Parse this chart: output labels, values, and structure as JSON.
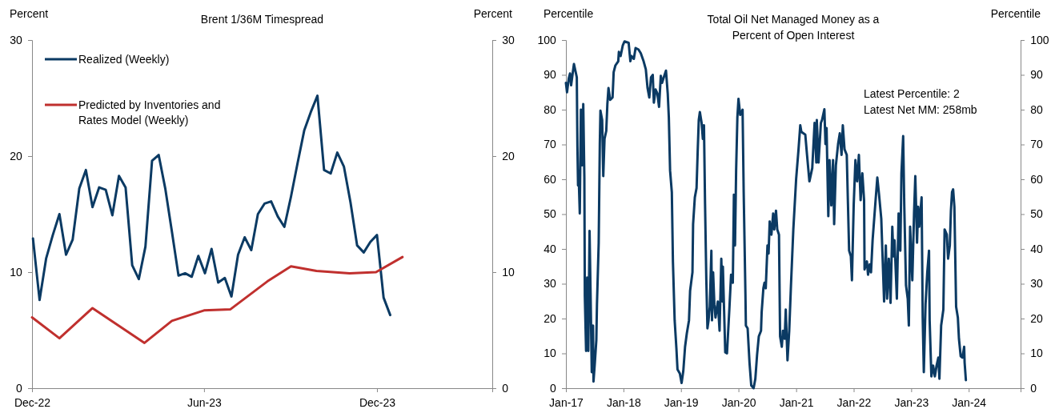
{
  "chart_data": [
    {
      "type": "line",
      "title": "Brent 1/36M Timespread",
      "ylabel": "Percent",
      "y2label": "Percent",
      "legend": "top left",
      "xlim": [
        "2022-12-01",
        "2024-04-01"
      ],
      "xticks": [
        {
          "value": "2022-12-01",
          "label": "Dec-22"
        },
        {
          "value": "2023-06-01",
          "label": "Jun-23"
        },
        {
          "value": "2023-12-01",
          "label": "Dec-23"
        }
      ],
      "ylim": [
        0,
        30
      ],
      "yticks": [
        0,
        10,
        20,
        30
      ],
      "y2lim": [
        0,
        30
      ],
      "y2ticks": [
        0,
        10,
        20,
        30
      ],
      "series": [
        {
          "name": "Realized (Weekly)",
          "color": "#0b3a63",
          "x": [
            "2022-12-02",
            "2022-12-09",
            "2022-12-16",
            "2022-12-23",
            "2022-12-30",
            "2023-01-06",
            "2023-01-13",
            "2023-01-20",
            "2023-01-27",
            "2023-02-03",
            "2023-02-10",
            "2023-02-17",
            "2023-02-24",
            "2023-03-03",
            "2023-03-10",
            "2023-03-17",
            "2023-03-24",
            "2023-03-31",
            "2023-04-07",
            "2023-04-14",
            "2023-04-21",
            "2023-04-28",
            "2023-05-05",
            "2023-05-12",
            "2023-05-19",
            "2023-05-26",
            "2023-06-02",
            "2023-06-09",
            "2023-06-16",
            "2023-06-23",
            "2023-06-30",
            "2023-07-07",
            "2023-07-14",
            "2023-07-21",
            "2023-07-28",
            "2023-08-04",
            "2023-08-11",
            "2023-08-18",
            "2023-08-25",
            "2023-09-01",
            "2023-09-08",
            "2023-09-15",
            "2023-09-22",
            "2023-09-29",
            "2023-10-06",
            "2023-10-13",
            "2023-10-20",
            "2023-10-27",
            "2023-11-03",
            "2023-11-10",
            "2023-11-17",
            "2023-11-24",
            "2023-12-01",
            "2023-12-08",
            "2023-12-15"
          ],
          "values": [
            12.9,
            7.6,
            11.2,
            13.2,
            15.0,
            11.5,
            12.8,
            17.2,
            18.8,
            15.6,
            17.3,
            17.1,
            14.9,
            18.3,
            17.3,
            10.6,
            9.4,
            12.2,
            19.6,
            20.1,
            17.2,
            13.5,
            9.7,
            9.9,
            9.6,
            11.4,
            9.9,
            12.0,
            9.1,
            9.5,
            7.9,
            11.5,
            13.0,
            11.9,
            15.0,
            15.9,
            16.1,
            14.8,
            13.9,
            16.5,
            19.4,
            22.2,
            23.8,
            25.2,
            18.8,
            18.5,
            20.3,
            19.1,
            16.0,
            12.3,
            11.7,
            12.6,
            13.2,
            7.8,
            6.3
          ]
        },
        {
          "name": "Predicted by Inventories and Rates Model (Weekly)",
          "color": "#c0302e",
          "x": [
            "2022-12-01",
            "2022-12-30",
            "2023-02-03",
            "2023-03-30",
            "2023-04-28",
            "2023-06-01",
            "2023-06-29",
            "2023-08-07",
            "2023-09-01",
            "2023-09-28",
            "2023-11-02",
            "2023-11-30",
            "2023-12-28"
          ],
          "values": [
            6.1,
            4.3,
            6.9,
            3.9,
            5.8,
            6.7,
            6.8,
            9.2,
            10.5,
            10.1,
            9.9,
            10.0,
            11.3
          ]
        }
      ]
    },
    {
      "type": "line",
      "title": "Total Oil Net Managed Money as a Percent of Open Interest",
      "ylabel": "Percentile",
      "y2label": "Percentile",
      "annotations": [
        "Latest Percentile: 2",
        "Latest Net MM: 258mb"
      ],
      "xlim": [
        "2017-01-01",
        "2024-11-25"
      ],
      "xticks": [
        {
          "value": "2017-01-01",
          "label": "Jan-17"
        },
        {
          "value": "2018-01-01",
          "label": "Jan-18"
        },
        {
          "value": "2019-01-01",
          "label": "Jan-19"
        },
        {
          "value": "2020-01-01",
          "label": "Jan-20"
        },
        {
          "value": "2021-01-01",
          "label": "Jan-21"
        },
        {
          "value": "2022-01-01",
          "label": "Jan-22"
        },
        {
          "value": "2023-01-01",
          "label": "Jan-23"
        },
        {
          "value": "2024-01-01",
          "label": "Jan-24"
        }
      ],
      "ylim": [
        0,
        100
      ],
      "yticks": [
        0,
        10,
        20,
        30,
        40,
        50,
        60,
        70,
        80,
        90,
        100
      ],
      "y2lim": [
        0,
        100
      ],
      "y2ticks": [
        0,
        10,
        20,
        30,
        40,
        50,
        60,
        70,
        80,
        90,
        100
      ],
      "series": [
        {
          "color": "#0b3a63",
          "x": [
            "2017-01-01",
            "2017-01-08",
            "2017-01-19",
            "2017-01-27",
            "2017-02-03",
            "2017-02-14",
            "2017-02-21",
            "2017-02-28",
            "2017-03-11",
            "2017-03-15",
            "2017-03-19",
            "2017-03-22",
            "2017-03-30",
            "2017-04-06",
            "2017-04-13",
            "2017-04-21",
            "2017-04-28",
            "2017-05-01",
            "2017-05-09",
            "2017-05-16",
            "2017-05-23",
            "2017-05-31",
            "2017-06-07",
            "2017-06-14",
            "2017-06-22",
            "2017-06-25",
            "2017-07-03",
            "2017-07-13",
            "2017-07-17",
            "2017-07-28",
            "2017-08-04",
            "2017-08-08",
            "2017-08-19",
            "2017-08-26",
            "2017-09-03",
            "2017-09-14",
            "2017-09-21",
            "2017-09-28",
            "2017-10-09",
            "2017-10-24",
            "2017-10-31",
            "2017-11-11",
            "2017-11-29",
            "2017-12-03",
            "2017-12-14",
            "2017-12-28",
            "2018-01-08",
            "2018-02-03",
            "2018-02-14",
            "2018-02-21",
            "2018-03-08",
            "2018-03-19",
            "2018-04-06",
            "2018-04-21",
            "2018-05-09",
            "2018-05-23",
            "2018-06-03",
            "2018-06-14",
            "2018-06-25",
            "2018-07-06",
            "2018-07-13",
            "2018-07-24",
            "2018-08-04",
            "2018-08-15",
            "2018-08-26",
            "2018-09-03",
            "2018-09-17",
            "2018-09-28",
            "2018-10-09",
            "2018-10-16",
            "2018-10-24",
            "2018-11-04",
            "2018-11-11",
            "2018-11-22",
            "2018-12-03",
            "2018-12-10",
            "2018-12-25",
            "2019-01-05",
            "2019-01-16",
            "2019-01-27",
            "2019-02-07",
            "2019-02-21",
            "2019-02-28",
            "2019-03-15",
            "2019-03-19",
            "2019-03-30",
            "2019-04-10",
            "2019-04-17",
            "2019-04-24",
            "2019-05-01",
            "2019-05-12",
            "2019-05-20",
            "2019-05-27",
            "2019-06-03",
            "2019-06-11",
            "2019-06-18",
            "2019-06-25",
            "2019-07-03",
            "2019-07-13",
            "2019-07-17",
            "2019-07-24",
            "2019-08-01",
            "2019-08-08",
            "2019-08-23",
            "2019-09-03",
            "2019-09-14",
            "2019-09-21",
            "2019-09-24",
            "2019-10-09",
            "2019-10-20",
            "2019-11-04",
            "2019-11-15",
            "2019-11-26",
            "2019-12-03",
            "2019-12-10",
            "2019-12-17",
            "2019-12-25",
            "2020-01-01",
            "2020-01-12",
            "2020-01-27",
            "2020-02-03",
            "2020-02-14",
            "2020-02-17",
            "2020-02-28",
            "2020-03-11",
            "2020-03-22",
            "2020-04-06",
            "2020-04-17",
            "2020-04-28",
            "2020-05-09",
            "2020-05-23",
            "2020-05-27",
            "2020-06-07",
            "2020-06-14",
            "2020-06-22",
            "2020-07-03",
            "2020-07-10",
            "2020-07-17",
            "2020-07-28",
            "2020-08-08",
            "2020-08-15",
            "2020-08-26",
            "2020-09-03",
            "2020-09-14",
            "2020-09-21",
            "2020-10-02",
            "2020-10-09",
            "2020-10-20",
            "2020-10-27",
            "2020-11-07",
            "2020-11-18",
            "2020-11-29",
            "2020-12-14",
            "2021-01-01",
            "2021-01-16",
            "2021-01-27",
            "2021-02-03",
            "2021-02-28",
            "2021-03-11",
            "2021-03-26",
            "2021-04-13",
            "2021-04-28",
            "2021-05-09",
            "2021-05-12",
            "2021-05-23",
            "2021-06-07",
            "2021-06-14",
            "2021-06-29",
            "2021-07-06",
            "2021-07-13",
            "2021-07-24",
            "2021-08-01",
            "2021-08-12",
            "2021-08-23",
            "2021-08-30",
            "2021-09-10",
            "2021-09-24",
            "2021-10-05",
            "2021-10-16",
            "2021-10-24",
            "2021-11-04",
            "2021-11-18",
            "2021-12-03",
            "2021-12-14",
            "2021-12-21",
            "2022-01-01",
            "2022-01-12",
            "2022-01-23",
            "2022-02-03",
            "2022-02-14",
            "2022-02-25",
            "2022-03-08",
            "2022-03-11",
            "2022-03-26",
            "2022-04-02",
            "2022-04-13",
            "2022-04-21",
            "2022-05-01",
            "2022-05-20",
            "2022-05-31",
            "2022-06-11",
            "2022-06-25",
            "2022-07-13",
            "2022-07-24",
            "2022-08-01",
            "2022-08-12",
            "2022-08-23",
            "2022-09-03",
            "2022-09-10",
            "2022-09-17",
            "2022-10-02",
            "2022-10-13",
            "2022-10-24",
            "2022-10-31",
            "2022-11-11",
            "2022-11-18",
            "2022-11-29",
            "2022-12-10",
            "2022-12-17",
            "2022-12-25",
            "2023-01-08",
            "2023-01-19",
            "2023-01-27",
            "2023-02-07",
            "2023-02-14",
            "2023-02-21",
            "2023-03-08",
            "2023-03-15",
            "2023-03-22",
            "2023-04-02",
            "2023-04-13",
            "2023-04-24",
            "2023-04-28",
            "2023-05-09",
            "2023-05-20",
            "2023-05-31",
            "2023-06-11",
            "2023-06-22",
            "2023-06-29",
            "2023-07-10",
            "2023-07-24",
            "2023-08-01",
            "2023-08-15",
            "2023-08-23",
            "2023-09-03",
            "2023-09-10",
            "2023-09-17",
            "2023-09-24",
            "2023-10-02",
            "2023-10-13",
            "2023-10-24",
            "2023-10-31",
            "2023-11-11",
            "2023-11-22",
            "2023-12-03",
            "2023-12-06",
            "2023-12-14"
          ],
          "values": [
            87.7,
            85,
            89,
            90.4,
            87,
            90.8,
            93.1,
            91.6,
            89.3,
            69.3,
            58.2,
            62.5,
            50.2,
            80,
            64,
            81.6,
            60.5,
            26.4,
            10.7,
            31.8,
            10.7,
            45.2,
            25.7,
            4.6,
            18,
            1.9,
            6.9,
            13.8,
            24.1,
            41.8,
            70.1,
            79.7,
            77,
            60.9,
            71.6,
            73.9,
            81.6,
            86.2,
            82.8,
            83.5,
            90.8,
            92.7,
            93.9,
            96.6,
            95.4,
            98.5,
            99.6,
            99.2,
            93.9,
            95.4,
            94.6,
            97.7,
            97.3,
            96.2,
            93.9,
            91.6,
            86.2,
            83.5,
            89.3,
            90,
            82,
            85.8,
            84.7,
            80.8,
            89.7,
            87.7,
            89.7,
            91.2,
            84.7,
            77.8,
            62.5,
            56.3,
            36.4,
            19.5,
            11.5,
            5.4,
            4.2,
            1.5,
            5,
            11.9,
            15.7,
            19.5,
            28,
            33.3,
            47.1,
            54.8,
            57.5,
            67.8,
            77,
            79.3,
            76.2,
            71.6,
            75.5,
            52.5,
            31,
            17.2,
            19.5,
            23.4,
            39.5,
            19.5,
            33.3,
            24.1,
            20.3,
            24.9,
            16.5,
            37.2,
            24.9,
            34.9,
            10.3,
            10,
            22.6,
            32.6,
            30.3,
            55.6,
            41,
            62.5,
            77.8,
            83.1,
            78.5,
            80,
            56.3,
            27.2,
            18,
            17.2,
            7.3,
            0.8,
            0,
            2.7,
            9.6,
            14.9,
            16.5,
            21.8,
            28.7,
            30.3,
            28.7,
            41,
            38.7,
            47.9,
            44.1,
            50.2,
            45.6,
            51,
            45.6,
            44.1,
            14.9,
            11.9,
            16.5,
            14.2,
            22.6,
            8.0,
            16.5,
            29.5,
            45.6,
            60.2,
            68.6,
            75.5,
            73.6,
            72.8,
            67,
            59.4,
            63.2,
            76.2,
            64.8,
            77,
            64.8,
            76.2,
            77,
            80.1,
            70.1,
            74.7,
            49.4,
            65.5,
            52.5,
            65.5,
            47.1,
            64,
            70.1,
            73.2,
            67,
            75.5,
            68.6,
            67,
            39.5,
            37.9,
            31,
            52.5,
            65.5,
            59.4,
            67,
            54,
            61.7,
            54,
            34.1,
            36.4,
            32.6,
            35.6,
            33.3,
            42.5,
            54,
            60.5,
            55.6,
            48.7,
            24.9,
            41,
            25.7,
            37.2,
            24.5,
            46.4,
            37.9,
            42.5,
            25.7,
            50.2,
            39.5,
            61.7,
            72.4,
            52.5,
            29.5,
            25.7,
            18,
            46.4,
            31,
            50.2,
            60.9,
            41.8,
            52.1,
            46.4,
            54.8,
            20.3,
            4.6,
            24.1,
            33.3,
            39.5,
            19.5,
            3.4,
            6.5,
            3.4,
            6.5,
            8.8,
            2.7,
            18,
            22.6,
            45.6,
            44.1,
            37.2,
            41,
            51,
            56.3,
            57.1,
            52.1,
            23.4,
            20.3,
            14.2,
            9.2,
            8.8,
            11.9,
            7.3,
            2.3
          ]
        }
      ]
    }
  ]
}
